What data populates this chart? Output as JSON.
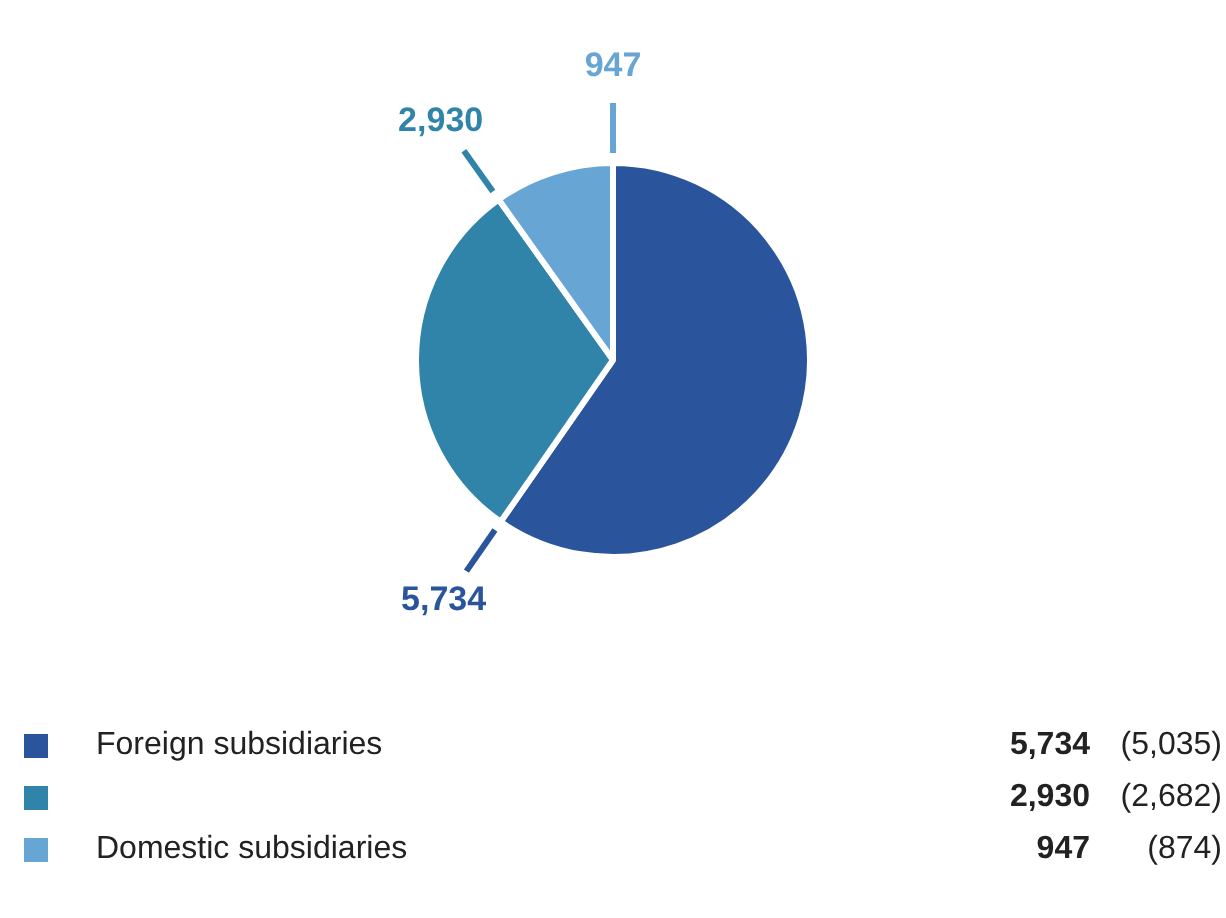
{
  "chart_data": {
    "type": "pie",
    "categories": [
      "Foreign subsidiaries",
      null,
      "Domestic subsidiaries"
    ],
    "values": [
      5734,
      2930,
      947
    ],
    "colors": [
      "#2a559c",
      "#3184a9",
      "#67a6d4"
    ],
    "value_labels": [
      "5,734",
      "2,930",
      "947"
    ],
    "legend": "bottom",
    "annotations": [
      "(5,035)",
      "(2,682)",
      "(874)"
    ]
  }
}
